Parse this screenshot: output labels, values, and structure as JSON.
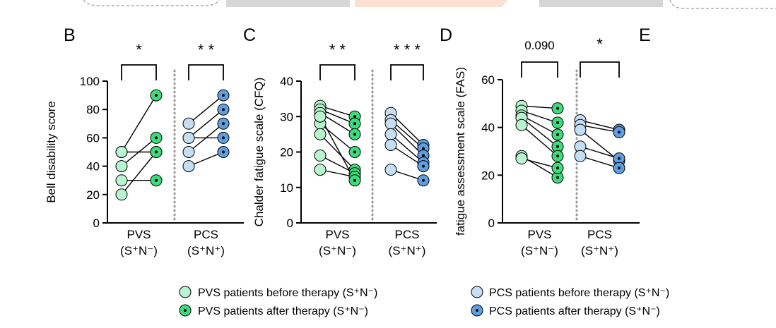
{
  "panel_letters": [
    "B",
    "C",
    "D",
    "E"
  ],
  "legend": {
    "pvs_before": "PVS patients before therapy (S⁺N⁻)",
    "pvs_after": "PVS patients after therapy (S⁺N⁻)",
    "pcs_before": "PCS patients before therapy (S⁺N⁻)",
    "pcs_after": "PCS patients after therapy (S⁺N⁻)"
  },
  "colors": {
    "pvs_before": "#b8f5cf",
    "pvs_after": "#3ddc7a",
    "pcs_before": "#c6def4",
    "pcs_after": "#5f9fe0",
    "dot": "#000000",
    "top_shapes": "#d6d6d6",
    "top_accent": "#fce1d2"
  },
  "chart_data": [
    {
      "type": "scatter",
      "panel": "B",
      "ylabel": "Bell disability score",
      "ylim": [
        0,
        100
      ],
      "yticks": [
        0,
        20,
        40,
        60,
        80,
        100
      ],
      "groups": [
        {
          "line1": "PVS",
          "line2": "(S⁺N⁻)",
          "significance": "*",
          "pairs": [
            [
              20,
              50
            ],
            [
              30,
              30
            ],
            [
              40,
              60
            ],
            [
              50,
              90
            ],
            [
              50,
              50
            ]
          ]
        },
        {
          "line1": "PCS",
          "line2": "(S⁺N⁺)",
          "significance": "* *",
          "pairs": [
            [
              40,
              50
            ],
            [
              50,
              70
            ],
            [
              60,
              80
            ],
            [
              60,
              60
            ],
            [
              70,
              90
            ]
          ]
        }
      ]
    },
    {
      "type": "scatter",
      "panel": "C",
      "ylabel": "Chalder fatigue scale (CFQ)",
      "ylim": [
        0,
        40
      ],
      "yticks": [
        0,
        10,
        20,
        30,
        40
      ],
      "groups": [
        {
          "line1": "PVS",
          "line2": "(S⁺N⁻)",
          "significance": "* *",
          "pairs": [
            [
              33,
              30
            ],
            [
              32,
              28
            ],
            [
              31,
              25
            ],
            [
              28,
              20
            ],
            [
              25,
              15
            ],
            [
              19,
              14
            ],
            [
              15,
              13
            ],
            [
              30,
              12
            ]
          ]
        },
        {
          "line1": "PCS",
          "line2": "(S⁺N⁺)",
          "significance": "* * *",
          "pairs": [
            [
              31,
              22
            ],
            [
              29,
              21
            ],
            [
              28,
              19
            ],
            [
              25,
              17
            ],
            [
              22,
              16
            ],
            [
              15,
              12
            ]
          ]
        }
      ]
    },
    {
      "type": "scatter",
      "panel": "D",
      "ylabel": "fatigue assessment scale (FAS)",
      "ylim": [
        0,
        60
      ],
      "yticks": [
        0,
        20,
        40,
        60
      ],
      "groups": [
        {
          "line1": "PVS",
          "line2": "(S⁺N⁻)",
          "significance": "0.090",
          "pairs": [
            [
              49,
              48
            ],
            [
              47,
              42
            ],
            [
              45,
              37
            ],
            [
              44,
              32
            ],
            [
              41,
              28
            ],
            [
              28,
              19
            ],
            [
              27,
              23
            ]
          ]
        },
        {
          "line1": "PCS",
          "line2": "(S⁺N⁺)",
          "significance": "*",
          "pairs": [
            [
              43,
              39
            ],
            [
              41,
              38
            ],
            [
              39,
              26
            ],
            [
              32,
              27
            ],
            [
              28,
              23
            ]
          ]
        }
      ]
    }
  ]
}
